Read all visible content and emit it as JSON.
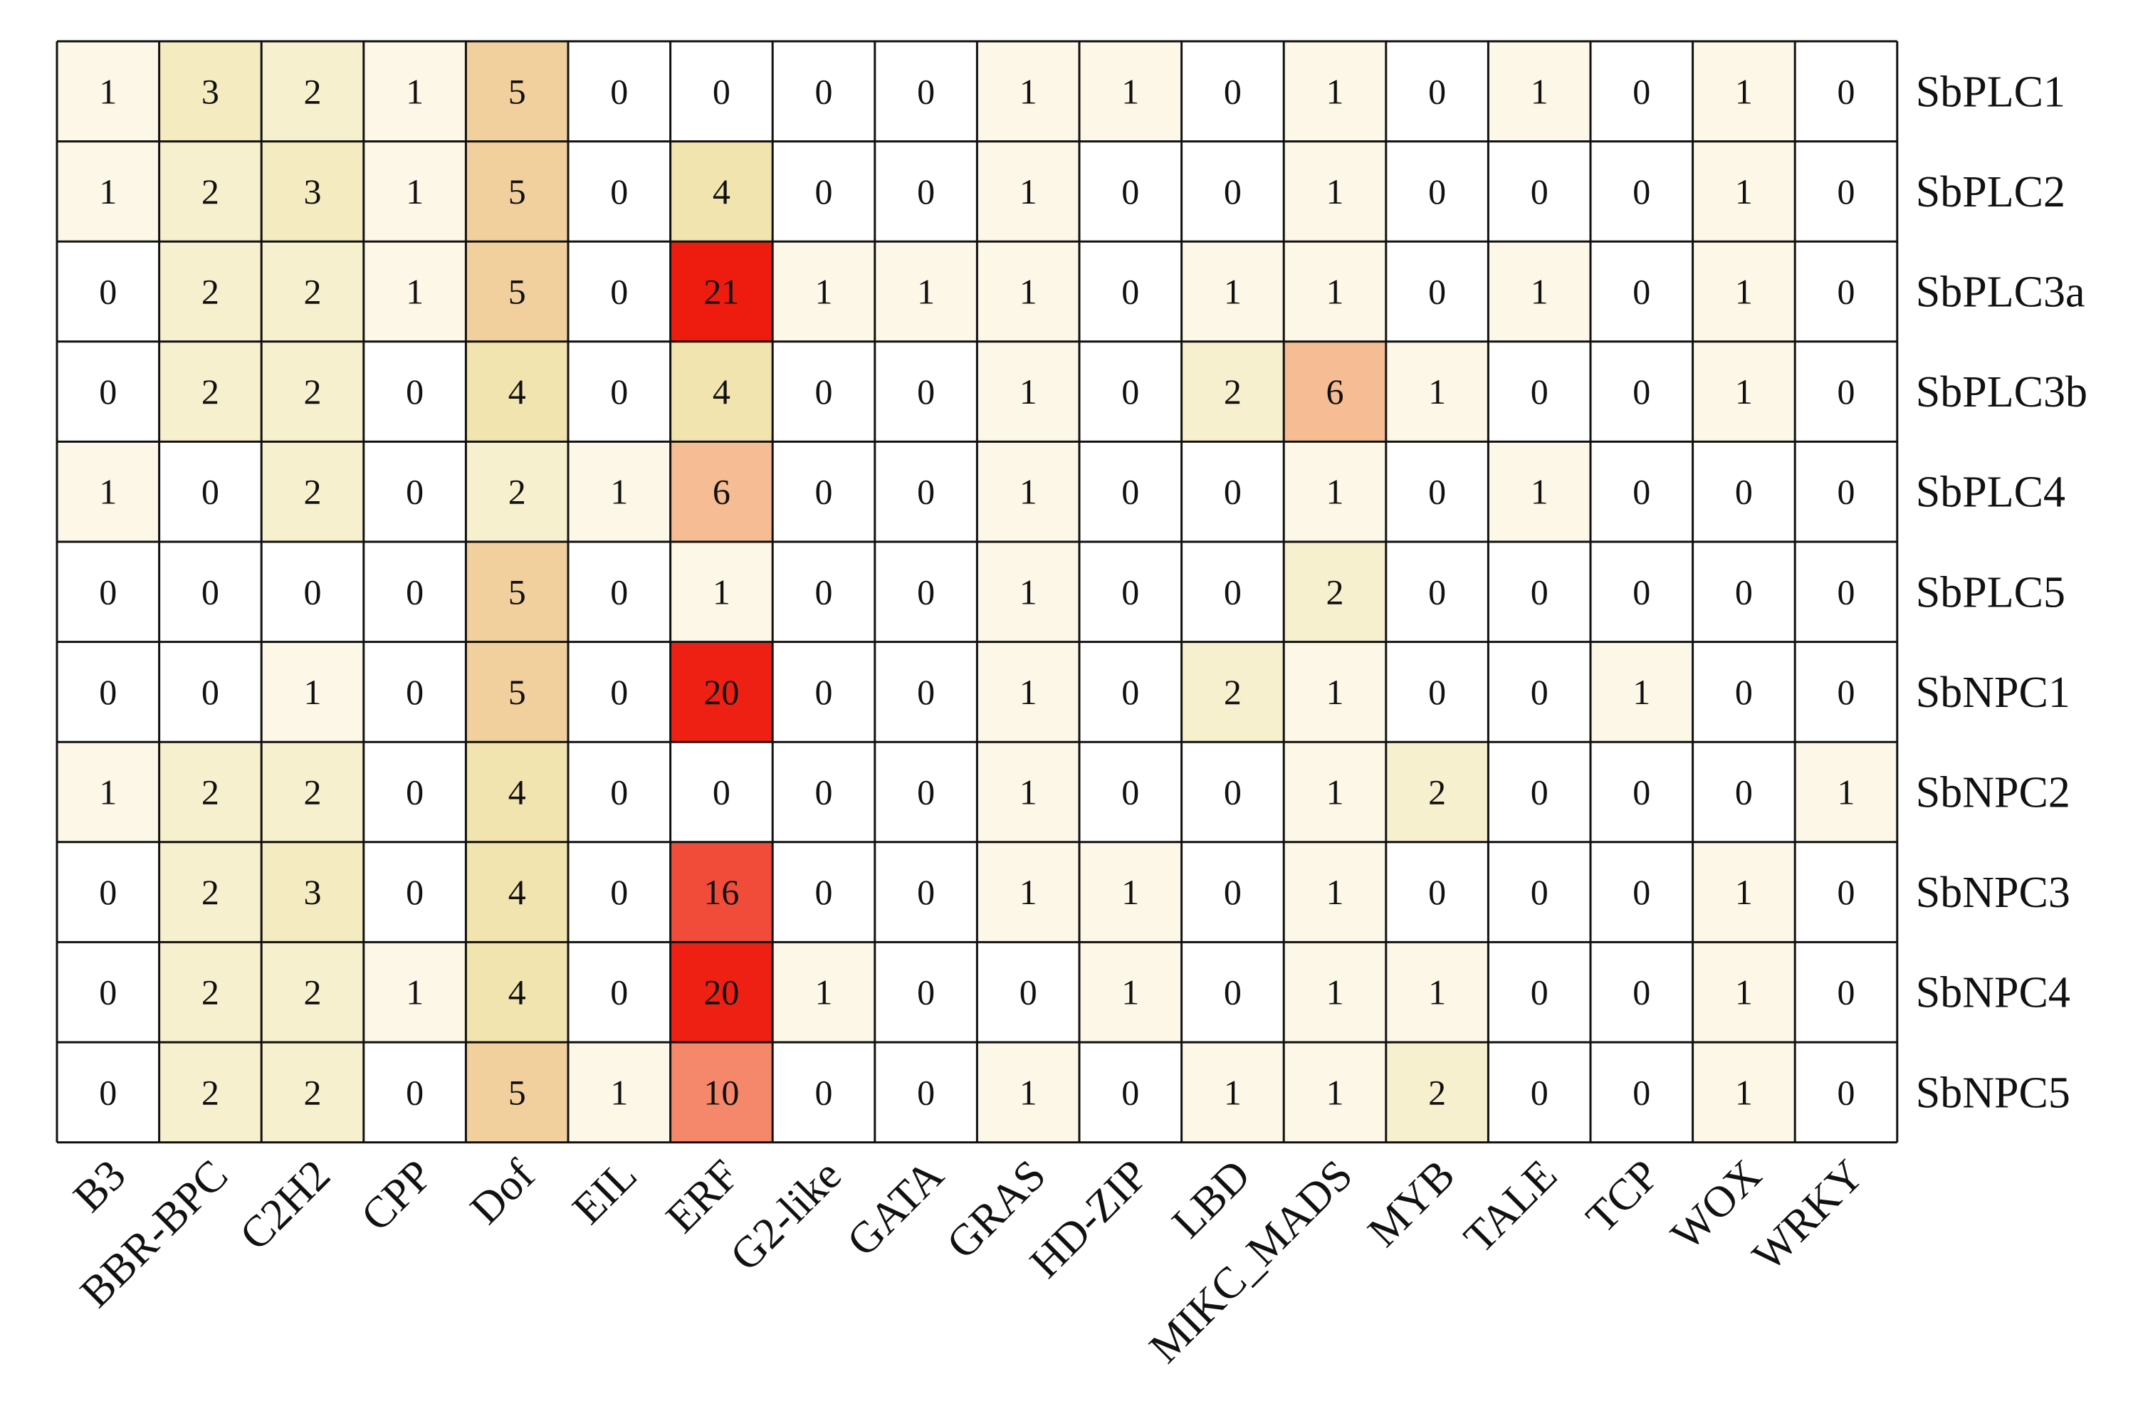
{
  "chart_data": {
    "type": "heatmap",
    "title": "",
    "xlabel": "",
    "ylabel": "",
    "columns": [
      "B3",
      "BBR-BPC",
      "C2H2",
      "CPP",
      "Dof",
      "EIL",
      "ERF",
      "G2-like",
      "GATA",
      "GRAS",
      "HD-ZIP",
      "LBD",
      "MIKC_MADS",
      "MYB",
      "TALE",
      "TCP",
      "WOX",
      "WRKY"
    ],
    "rows": [
      "SbPLC1",
      "SbPLC2",
      "SbPLC3a",
      "SbPLC3b",
      "SbPLC4",
      "SbPLC5",
      "SbNPC1",
      "SbNPC2",
      "SbNPC3",
      "SbNPC4",
      "SbNPC5"
    ],
    "values": [
      [
        1,
        3,
        2,
        1,
        5,
        0,
        0,
        0,
        0,
        1,
        1,
        0,
        1,
        0,
        1,
        0,
        1,
        0
      ],
      [
        1,
        2,
        3,
        1,
        5,
        0,
        4,
        0,
        0,
        1,
        0,
        0,
        1,
        0,
        0,
        0,
        1,
        0
      ],
      [
        0,
        2,
        2,
        1,
        5,
        0,
        21,
        1,
        1,
        1,
        0,
        1,
        1,
        0,
        1,
        0,
        1,
        0
      ],
      [
        0,
        2,
        2,
        0,
        4,
        0,
        4,
        0,
        0,
        1,
        0,
        2,
        6,
        1,
        0,
        0,
        1,
        0
      ],
      [
        1,
        0,
        2,
        0,
        2,
        1,
        6,
        0,
        0,
        1,
        0,
        0,
        1,
        0,
        1,
        0,
        0,
        0
      ],
      [
        0,
        0,
        0,
        0,
        5,
        0,
        1,
        0,
        0,
        1,
        0,
        0,
        2,
        0,
        0,
        0,
        0,
        0
      ],
      [
        0,
        0,
        1,
        0,
        5,
        0,
        20,
        0,
        0,
        1,
        0,
        2,
        1,
        0,
        0,
        1,
        0,
        0
      ],
      [
        1,
        2,
        2,
        0,
        4,
        0,
        0,
        0,
        0,
        1,
        0,
        0,
        1,
        2,
        0,
        0,
        0,
        1
      ],
      [
        0,
        2,
        3,
        0,
        4,
        0,
        16,
        0,
        0,
        1,
        1,
        0,
        1,
        0,
        0,
        0,
        1,
        0
      ],
      [
        0,
        2,
        2,
        1,
        4,
        0,
        20,
        1,
        0,
        0,
        1,
        0,
        1,
        1,
        0,
        0,
        1,
        0
      ],
      [
        0,
        2,
        2,
        0,
        5,
        1,
        10,
        0,
        0,
        1,
        0,
        1,
        1,
        2,
        0,
        0,
        1,
        0
      ]
    ],
    "color_scale": {
      "min": 0,
      "max": 21,
      "low": "#ffffff",
      "high": "#ee1c0e"
    },
    "grid": true,
    "legend": "none"
  }
}
